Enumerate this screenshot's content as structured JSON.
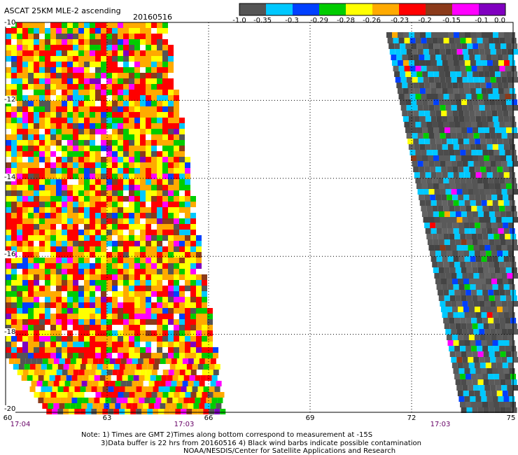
{
  "title": "ASCAT 25KM MLE-2 ascending",
  "date": "20160516",
  "colorbar": {
    "colors": [
      "#555555",
      "#00c8ff",
      "#0040ff",
      "#00cc00",
      "#ffff00",
      "#ffaa00",
      "#ff0000",
      "#8b3a1a",
      "#ff00ff",
      "#8000c0"
    ],
    "labels": [
      "-1.0",
      "-0.35",
      "-0.3",
      "-0.29",
      "-0.28",
      "-0.26",
      "-0.23",
      "-0.2",
      "-0.15",
      "-0.1",
      "0.0"
    ]
  },
  "axes": {
    "x_ticks": [
      "60",
      "63",
      "66",
      "69",
      "72",
      "75"
    ],
    "y_ticks": [
      "-10",
      "-12",
      "-14",
      "-16",
      "-18",
      "-20"
    ],
    "x_range": [
      60,
      75
    ],
    "y_range": [
      -20,
      -10
    ]
  },
  "times": [
    "17:04",
    "17:03",
    "17:03"
  ],
  "notes": [
    "Note: 1) Times are GMT 2)Times along bottom correspond to measurement at -15S",
    "3)Data buffer is 22 hrs from 20160516 4) Black wind barbs indicate possible contamination",
    "NOAA/NESDIS/Center for Satellite Applications and Research"
  ]
}
